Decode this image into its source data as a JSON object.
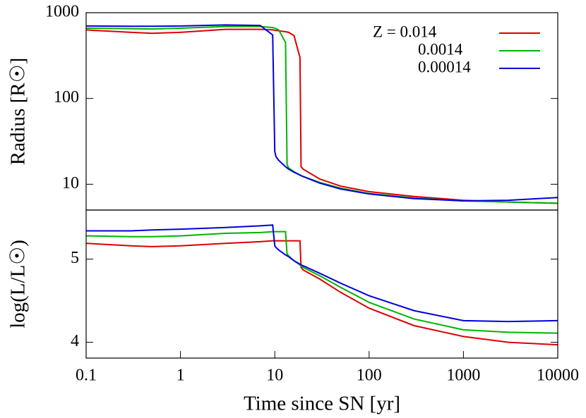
{
  "chart_data": [
    {
      "type": "line",
      "ylabel": "Radius [R☉]",
      "xscale": "log",
      "yscale": "log",
      "xlim": [
        0.1,
        10000
      ],
      "ylim": [
        5,
        1000
      ],
      "yticks": [
        10,
        100,
        1000
      ],
      "legend": "upper right",
      "x": [
        0.1,
        0.3,
        0.5,
        1,
        3,
        7,
        9.5,
        10,
        10.3,
        11,
        13,
        13.5,
        14,
        16,
        18.5,
        19,
        20,
        30,
        50,
        100,
        300,
        1000,
        3000,
        10000
      ],
      "series": [
        {
          "name": "Z = 0.014",
          "color": "#dd0000",
          "values": [
            630,
            590,
            575,
            590,
            640,
            640,
            630,
            625,
            620,
            615,
            600,
            595,
            590,
            540,
            300,
            16,
            15,
            11.5,
            9.5,
            8.2,
            7.2,
            6.5,
            6.2,
            6.0
          ]
        },
        {
          "name": "0.0014",
          "color": "#00b400",
          "values": [
            660,
            650,
            645,
            660,
            690,
            690,
            670,
            660,
            650,
            630,
            450,
            17,
            15.5,
            14,
            12.8,
            12.6,
            12.3,
            10.5,
            9,
            7.8,
            6.9,
            6.4,
            6.2,
            6.0
          ]
        },
        {
          "name": "0.00014",
          "color": "#0000dd",
          "values": [
            700,
            695,
            695,
            700,
            720,
            710,
            550,
            24,
            21,
            19,
            16,
            15.5,
            15,
            13.8,
            12.8,
            12.6,
            12.3,
            10.3,
            8.8,
            7.7,
            6.8,
            6.4,
            6.5,
            7.0
          ]
        }
      ]
    },
    {
      "type": "line",
      "ylabel": "log(L/L☉)",
      "xlabel": "Time since SN [yr]",
      "xscale": "log",
      "xlim": [
        0.1,
        10000
      ],
      "xticks": [
        0.1,
        1,
        10,
        100,
        1000,
        10000
      ],
      "ylim": [
        3.81,
        5.59
      ],
      "yticks": [
        4,
        5
      ],
      "x": [
        0.1,
        0.3,
        0.5,
        1,
        3,
        7,
        9.5,
        10,
        10.3,
        11,
        13,
        13.5,
        14,
        16,
        18.5,
        19,
        20,
        30,
        50,
        100,
        300,
        1000,
        3000,
        10000
      ],
      "series": [
        {
          "color": "#dd0000",
          "values": [
            5.19,
            5.16,
            5.15,
            5.16,
            5.19,
            5.21,
            5.22,
            5.22,
            5.22,
            5.22,
            5.22,
            5.22,
            5.22,
            5.22,
            5.22,
            4.9,
            4.87,
            4.76,
            4.6,
            4.41,
            4.2,
            4.07,
            4.0,
            3.97
          ]
        },
        {
          "color": "#00b400",
          "values": [
            5.28,
            5.27,
            5.27,
            5.28,
            5.31,
            5.32,
            5.33,
            5.33,
            5.33,
            5.33,
            5.33,
            5.06,
            5.04,
            4.98,
            4.93,
            4.92,
            4.9,
            4.8,
            4.66,
            4.48,
            4.28,
            4.15,
            4.12,
            4.11
          ]
        },
        {
          "color": "#0000dd",
          "values": [
            5.34,
            5.34,
            5.35,
            5.36,
            5.38,
            5.4,
            5.41,
            5.16,
            5.14,
            5.11,
            5.05,
            5.04,
            5.03,
            4.98,
            4.94,
            4.93,
            4.92,
            4.83,
            4.71,
            4.56,
            4.38,
            4.26,
            4.25,
            4.26
          ]
        }
      ]
    }
  ]
}
